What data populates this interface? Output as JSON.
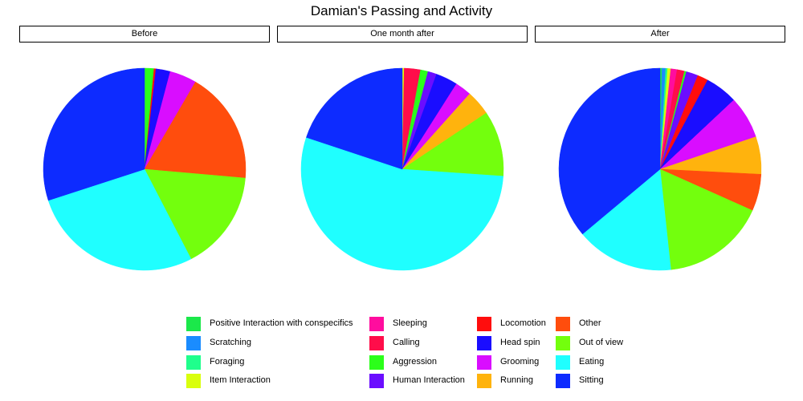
{
  "title": "Damian's Passing and Activity",
  "chart_data": {
    "type": "pie",
    "title": "Damian's Passing and Activity",
    "categories": [
      "Positive Interaction with conspecifics",
      "Scratching",
      "Foraging",
      "Item Interaction",
      "Sleeping",
      "Calling",
      "Aggression",
      "Human Interaction",
      "Locomotion",
      "Head spin",
      "Grooming",
      "Running",
      "Other",
      "Out of view",
      "Eating",
      "Sitting"
    ],
    "colors": [
      "#1BE84A",
      "#1A8CFF",
      "#1FFF8C",
      "#D9FF0D",
      "#FF0D9E",
      "#FF0D4A",
      "#2BFF1A",
      "#6B0DFF",
      "#FF0D0D",
      "#1A0DFF",
      "#D90DFF",
      "#FFB30D",
      "#FF4D0D",
      "#73FF0D",
      "#1FFFFF",
      "#0D2BFF"
    ],
    "series": [
      {
        "name": "Before",
        "values": [
          0,
          0,
          0,
          0,
          0,
          0,
          1.5,
          0,
          0.3,
          2.3,
          4.3,
          0,
          18.0,
          16.0,
          27.6,
          30.0
        ]
      },
      {
        "name": "One month after",
        "values": [
          0,
          0,
          0,
          0.3,
          0,
          2.6,
          1.2,
          1.4,
          0,
          3.5,
          2.6,
          4.0,
          0,
          10.5,
          54.0,
          19.9
        ]
      },
      {
        "name": "After",
        "values": [
          0.3,
          0.6,
          0.3,
          0.5,
          1.0,
          1.2,
          0.3,
          1.9,
          1.7,
          5.2,
          6.8,
          6.0,
          5.9,
          16.6,
          15.6,
          36.1
        ]
      }
    ]
  },
  "legend": {
    "columns": [
      [
        "Positive Interaction with conspecifics",
        "Scratching",
        "Foraging",
        "Item Interaction"
      ],
      [
        "Sleeping",
        "Calling",
        "Aggression",
        "Human Interaction"
      ],
      [
        "Locomotion",
        "Head spin",
        "Grooming",
        "Running"
      ],
      [
        "Other",
        "Out of view",
        "Eating",
        "Sitting"
      ]
    ]
  }
}
